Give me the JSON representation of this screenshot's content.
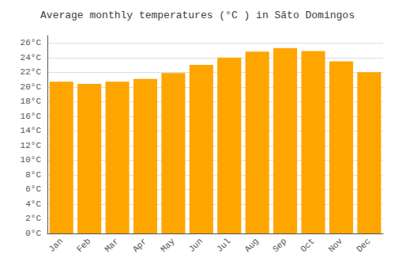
{
  "chart_data": {
    "type": "bar",
    "title": "Average monthly temperatures (°C ) in Sãto Domingos",
    "categories": [
      "Jan",
      "Feb",
      "Mar",
      "Apr",
      "May",
      "Jun",
      "Jul",
      "Aug",
      "Sep",
      "Oct",
      "Nov",
      "Dec"
    ],
    "values": [
      20.7,
      20.4,
      20.7,
      21.1,
      21.9,
      23.0,
      24.0,
      24.8,
      25.3,
      24.9,
      23.5,
      22.0
    ],
    "color": "#FFA500",
    "ylim": [
      0,
      27
    ],
    "yticks": [
      {
        "value": 0,
        "label": "0°C"
      },
      {
        "value": 2,
        "label": "2°C"
      },
      {
        "value": 4,
        "label": "4°C"
      },
      {
        "value": 6,
        "label": "6°C"
      },
      {
        "value": 8,
        "label": "8°C"
      },
      {
        "value": 10,
        "label": "10°C"
      },
      {
        "value": 12,
        "label": "12°C"
      },
      {
        "value": 14,
        "label": "14°C"
      },
      {
        "value": 16,
        "label": "16°C"
      },
      {
        "value": 18,
        "label": "18°C"
      },
      {
        "value": 20,
        "label": "20°C"
      },
      {
        "value": 22,
        "label": "22°C"
      },
      {
        "value": 24,
        "label": "24°C"
      },
      {
        "value": 26,
        "label": "26°C"
      }
    ],
    "grid": true
  }
}
